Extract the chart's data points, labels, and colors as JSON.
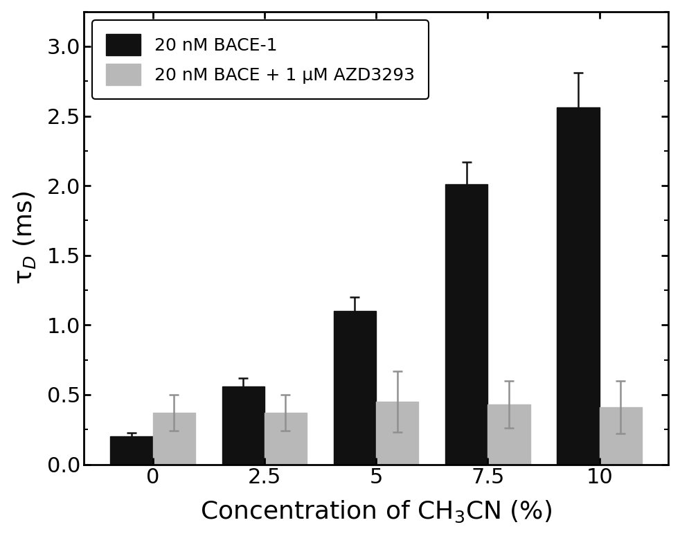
{
  "categories": [
    0,
    2.5,
    5,
    7.5,
    10
  ],
  "x_labels": [
    "0",
    "2.5",
    "5",
    "7.5",
    "10"
  ],
  "bace_values": [
    0.2,
    0.56,
    1.1,
    2.01,
    2.56
  ],
  "bace_errors": [
    0.025,
    0.06,
    0.1,
    0.16,
    0.25
  ],
  "bace_azd_values": [
    0.37,
    0.37,
    0.45,
    0.43,
    0.41
  ],
  "bace_azd_errors": [
    0.13,
    0.13,
    0.22,
    0.17,
    0.19
  ],
  "bar_color_bace": "#111111",
  "bar_color_azd": "#b8b8b8",
  "ylabel": "τ$_D$ (ms)",
  "xlabel": "Concentration of CH$_3$CN (%)",
  "ylim": [
    0.0,
    3.25
  ],
  "yticks": [
    0.0,
    0.5,
    1.0,
    1.5,
    2.0,
    2.5,
    3.0
  ],
  "legend_label_bace": "20 nM BACE-1",
  "legend_label_azd": "20 nM BACE + 1 μM AZD3293",
  "bar_width": 0.38,
  "background_color": "#ffffff",
  "figure_width": 9.82,
  "figure_height": 7.74,
  "dpi": 100
}
